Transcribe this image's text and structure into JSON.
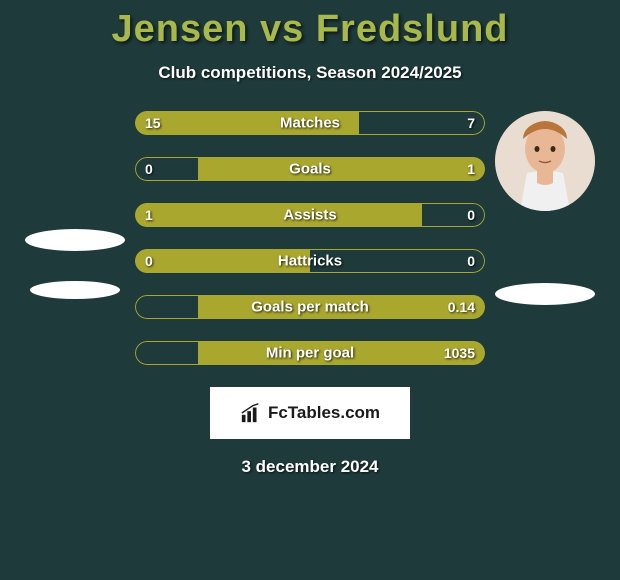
{
  "background_color": "#1e3a3a",
  "title": {
    "text": "Jensen vs Fredslund",
    "color": "#a9b84a",
    "fontsize": 38
  },
  "subtitle": {
    "text": "Club competitions, Season 2024/2025",
    "color": "#ffffff",
    "fontsize": 17
  },
  "accent_color": "#a9a72e",
  "border_color": "#a9a72e",
  "text_color": "#ffffff",
  "players": {
    "left": {
      "name": "Jensen",
      "has_photo": false
    },
    "right": {
      "name": "Fredslund",
      "has_photo": true
    }
  },
  "stats": [
    {
      "label": "Matches",
      "left_val": "15",
      "right_val": "7",
      "left_pct": 64,
      "right_pct": 36
    },
    {
      "label": "Goals",
      "left_val": "0",
      "right_val": "1",
      "left_pct": 18,
      "right_pct": 82
    },
    {
      "label": "Assists",
      "left_val": "1",
      "right_val": "0",
      "left_pct": 82,
      "right_pct": 18
    },
    {
      "label": "Hattricks",
      "left_val": "0",
      "right_val": "0",
      "left_pct": 50,
      "right_pct": 50
    },
    {
      "label": "Goals per match",
      "left_val": "",
      "right_val": "0.14",
      "left_pct": 18,
      "right_pct": 82
    },
    {
      "label": "Min per goal",
      "left_val": "",
      "right_val": "1035",
      "left_pct": 18,
      "right_pct": 82
    }
  ],
  "brand": {
    "text": "FcTables.com",
    "bg": "#ffffff",
    "color": "#1a1a1a"
  },
  "date": {
    "text": "3 december 2024",
    "color": "#ffffff"
  }
}
